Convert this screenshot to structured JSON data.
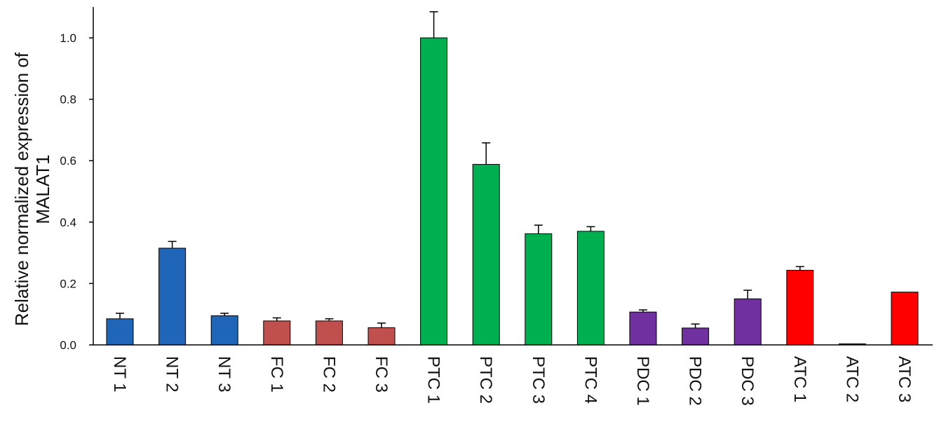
{
  "chart_data": {
    "type": "bar",
    "title": "",
    "xlabel": "",
    "ylabel_lines": [
      "Relative normalized expression of",
      "MALAT1"
    ],
    "ylim": [
      0,
      1.1
    ],
    "yticks": [
      "0.0",
      "0.2",
      "0.4",
      "0.6",
      "0.8",
      "1.0"
    ],
    "grid": false,
    "legend": "none",
    "categories": [
      "NT 1",
      "NT 2",
      "NT 3",
      "FC 1",
      "FC 2",
      "FC 3",
      "PTC 1",
      "PTC 2",
      "PTC 3",
      "PTC 4",
      "PDC 1",
      "PDC 2",
      "PDC 3",
      "ATC 1",
      "ATC 2",
      "ATC 3"
    ],
    "values": [
      0.085,
      0.315,
      0.095,
      0.078,
      0.078,
      0.056,
      1.0,
      0.588,
      0.362,
      0.37,
      0.107,
      0.055,
      0.15,
      0.243,
      0.003,
      0.172
    ],
    "errors": [
      0.018,
      0.022,
      0.008,
      0.01,
      0.007,
      0.015,
      0.085,
      0.07,
      0.028,
      0.015,
      0.007,
      0.013,
      0.028,
      0.012,
      0.0,
      0.0
    ],
    "colors": [
      "#1f66b8",
      "#1f66b8",
      "#1f66b8",
      "#c0504d",
      "#c0504d",
      "#c0504d",
      "#00b050",
      "#00b050",
      "#00b050",
      "#00b050",
      "#7030a0",
      "#7030a0",
      "#7030a0",
      "#ff0000",
      "#ff0000",
      "#ff0000"
    ]
  }
}
